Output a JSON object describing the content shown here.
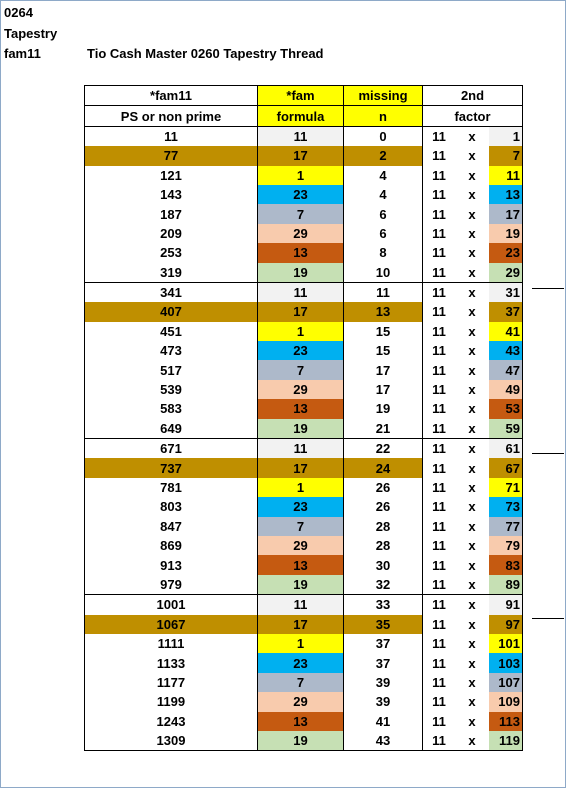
{
  "header_lines": [
    "0264",
    "Tapestry",
    "fam11"
  ],
  "title": "Tio Cash Master 0260 Tapestry Thread",
  "columns": {
    "c1": [
      "*fam11",
      "PS or non prime"
    ],
    "c2": [
      "*fam",
      "formula"
    ],
    "c3": [
      "missing",
      "n"
    ],
    "c4": [
      "2nd",
      "factor"
    ]
  },
  "multiplier": "11",
  "times": "x",
  "colors": {
    "11": "#f2f2f2",
    "17": "#bf8f00",
    "1": "#ffff00",
    "23": "#00b0f0",
    "7": "#adb9ca",
    "29": "#f8cbad",
    "13": "#c55a11",
    "19": "#c6e0b4",
    "header_yellow": "#ffff00"
  },
  "rows": [
    {
      "value": "11",
      "formula": "11",
      "missing": "0",
      "factor": "1"
    },
    {
      "value": "77",
      "formula": "17",
      "missing": "2",
      "factor": "7"
    },
    {
      "value": "121",
      "formula": "1",
      "missing": "4",
      "factor": "11"
    },
    {
      "value": "143",
      "formula": "23",
      "missing": "4",
      "factor": "13"
    },
    {
      "value": "187",
      "formula": "7",
      "missing": "6",
      "factor": "17"
    },
    {
      "value": "209",
      "formula": "29",
      "missing": "6",
      "factor": "19"
    },
    {
      "value": "253",
      "formula": "13",
      "missing": "8",
      "factor": "23"
    },
    {
      "value": "319",
      "formula": "19",
      "missing": "10",
      "factor": "29"
    },
    {
      "value": "341",
      "formula": "11",
      "missing": "11",
      "factor": "31"
    },
    {
      "value": "407",
      "formula": "17",
      "missing": "13",
      "factor": "37"
    },
    {
      "value": "451",
      "formula": "1",
      "missing": "15",
      "factor": "41"
    },
    {
      "value": "473",
      "formula": "23",
      "missing": "15",
      "factor": "43"
    },
    {
      "value": "517",
      "formula": "7",
      "missing": "17",
      "factor": "47"
    },
    {
      "value": "539",
      "formula": "29",
      "missing": "17",
      "factor": "49"
    },
    {
      "value": "583",
      "formula": "13",
      "missing": "19",
      "factor": "53"
    },
    {
      "value": "649",
      "formula": "19",
      "missing": "21",
      "factor": "59"
    },
    {
      "value": "671",
      "formula": "11",
      "missing": "22",
      "factor": "61"
    },
    {
      "value": "737",
      "formula": "17",
      "missing": "24",
      "factor": "67"
    },
    {
      "value": "781",
      "formula": "1",
      "missing": "26",
      "factor": "71"
    },
    {
      "value": "803",
      "formula": "23",
      "missing": "26",
      "factor": "73"
    },
    {
      "value": "847",
      "formula": "7",
      "missing": "28",
      "factor": "77"
    },
    {
      "value": "869",
      "formula": "29",
      "missing": "28",
      "factor": "79"
    },
    {
      "value": "913",
      "formula": "13",
      "missing": "30",
      "factor": "83"
    },
    {
      "value": "979",
      "formula": "19",
      "missing": "32",
      "factor": "89"
    },
    {
      "value": "1001",
      "formula": "11",
      "missing": "33",
      "factor": "91"
    },
    {
      "value": "1067",
      "formula": "17",
      "missing": "35",
      "factor": "97"
    },
    {
      "value": "1111",
      "formula": "1",
      "missing": "37",
      "factor": "101"
    },
    {
      "value": "1133",
      "formula": "23",
      "missing": "37",
      "factor": "103"
    },
    {
      "value": "1177",
      "formula": "7",
      "missing": "39",
      "factor": "107"
    },
    {
      "value": "1199",
      "formula": "29",
      "missing": "39",
      "factor": "109"
    },
    {
      "value": "1243",
      "formula": "13",
      "missing": "41",
      "factor": "113"
    },
    {
      "value": "1309",
      "formula": "19",
      "missing": "43",
      "factor": "119"
    }
  ]
}
